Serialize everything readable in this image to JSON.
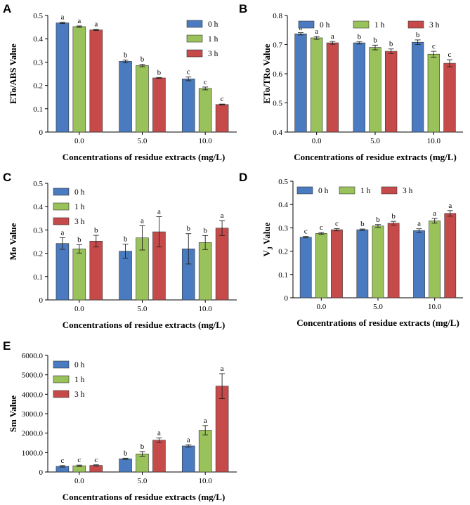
{
  "chart_data": [
    {
      "type": "bar",
      "panel_label": "A",
      "title": "",
      "xlabel": "Concentrations of residue extracts (mg/L)",
      "ylabel": "ETo/ABS Value",
      "categories": [
        "0.0",
        "5.0",
        "10.0"
      ],
      "ylim": [
        0,
        0.5
      ],
      "yticks": [
        "0",
        "0.1",
        "0.2",
        "0.3",
        "0.4",
        "0.5"
      ],
      "legend_position": "top-right",
      "series": [
        {
          "name": "0 h",
          "color": "#4a7bc0",
          "values": [
            0.468,
            0.303,
            0.228
          ],
          "errors": [
            0.003,
            0.006,
            0.008
          ],
          "labels": [
            "a",
            "b",
            "c"
          ]
        },
        {
          "name": "1 h",
          "color": "#9ac25a",
          "values": [
            0.452,
            0.285,
            0.187
          ],
          "errors": [
            0.003,
            0.005,
            0.006
          ],
          "labels": [
            "a",
            "b",
            "c"
          ]
        },
        {
          "name": "3 h",
          "color": "#c74a4a",
          "values": [
            0.438,
            0.232,
            0.118
          ],
          "errors": [
            0.003,
            0.002,
            0.002
          ],
          "labels": [
            "a",
            "b",
            "c"
          ]
        }
      ]
    },
    {
      "type": "bar",
      "panel_label": "B",
      "title": "",
      "xlabel": "Concentrations of residue extracts (mg/L)",
      "ylabel": "ETo/TRo Value",
      "categories": [
        "0.0",
        "5.0",
        "10.0"
      ],
      "ylim": [
        0.4,
        0.8
      ],
      "yticks": [
        "0.4",
        "0.5",
        "0.6",
        "0.7",
        "0.8"
      ],
      "legend_position": "top",
      "series": [
        {
          "name": "0 h",
          "color": "#4a7bc0",
          "values": [
            0.737,
            0.706,
            0.708
          ],
          "errors": [
            0.004,
            0.004,
            0.008
          ],
          "labels": [
            "a",
            "b",
            "b"
          ]
        },
        {
          "name": "1 h",
          "color": "#9ac25a",
          "values": [
            0.723,
            0.69,
            0.667
          ],
          "errors": [
            0.005,
            0.008,
            0.01
          ],
          "labels": [
            "a",
            "b",
            "c"
          ]
        },
        {
          "name": "3 h",
          "color": "#c74a4a",
          "values": [
            0.706,
            0.677,
            0.636
          ],
          "errors": [
            0.005,
            0.008,
            0.012
          ],
          "labels": [
            "a",
            "b",
            "c"
          ]
        }
      ]
    },
    {
      "type": "bar",
      "panel_label": "C",
      "title": "",
      "xlabel": "Concentrations of residue extracts (mg/L)",
      "ylabel": "Mo Value",
      "categories": [
        "0.0",
        "5.0",
        "10.0"
      ],
      "ylim": [
        0,
        0.5
      ],
      "yticks": [
        "0",
        "0.1",
        "0.2",
        "0.3",
        "0.4",
        "0.5"
      ],
      "legend_position": "top-left",
      "series": [
        {
          "name": "0 h",
          "color": "#4a7bc0",
          "values": [
            0.242,
            0.209,
            0.219
          ],
          "errors": [
            0.025,
            0.03,
            0.065
          ],
          "labels": [
            "a",
            "b",
            "b"
          ]
        },
        {
          "name": "1 h",
          "color": "#9ac25a",
          "values": [
            0.219,
            0.266,
            0.246
          ],
          "errors": [
            0.018,
            0.052,
            0.03
          ],
          "labels": [
            "b",
            "a",
            "b"
          ]
        },
        {
          "name": "3 h",
          "color": "#c74a4a",
          "values": [
            0.252,
            0.292,
            0.308
          ],
          "errors": [
            0.025,
            0.065,
            0.032
          ],
          "labels": [
            "b",
            "a",
            "a"
          ]
        }
      ]
    },
    {
      "type": "bar",
      "panel_label": "D",
      "title": "",
      "xlabel": "Concentrations of residue extracts (mg/L)",
      "ylabel": "VJ Value",
      "ylabel_main": "V",
      "ylabel_sub": "J",
      "ylabel_suffix": " Value",
      "categories": [
        "0.0",
        "5.0",
        "10.0"
      ],
      "ylim": [
        0,
        0.5
      ],
      "yticks": [
        "0",
        "0.1",
        "0.2",
        "0.3",
        "0.4",
        "0.5"
      ],
      "legend_position": "top",
      "series": [
        {
          "name": "0 h",
          "color": "#4a7bc0",
          "values": [
            0.26,
            0.292,
            0.288
          ],
          "errors": [
            0.003,
            0.003,
            0.008
          ],
          "labels": [
            "c",
            "b",
            "a"
          ]
        },
        {
          "name": "1 h",
          "color": "#9ac25a",
          "values": [
            0.276,
            0.308,
            0.33
          ],
          "errors": [
            0.004,
            0.006,
            0.01
          ],
          "labels": [
            "c",
            "b",
            "a"
          ]
        },
        {
          "name": "3 h",
          "color": "#c74a4a",
          "values": [
            0.292,
            0.32,
            0.362
          ],
          "errors": [
            0.005,
            0.008,
            0.012
          ],
          "labels": [
            "c",
            "b",
            "a"
          ]
        }
      ]
    },
    {
      "type": "bar",
      "panel_label": "E",
      "title": "",
      "xlabel": "Concentrations of residue extracts (mg/L)",
      "ylabel": "Sm Value",
      "categories": [
        "0.0",
        "5.0",
        "10.0"
      ],
      "ylim": [
        0,
        6000
      ],
      "yticks": [
        "0",
        "1000.0",
        "2000.0",
        "3000.0",
        "4000.0",
        "5000.0",
        "6000.0"
      ],
      "legend_position": "top-left",
      "series": [
        {
          "name": "0 h",
          "color": "#4a7bc0",
          "values": [
            290,
            680,
            1340
          ],
          "errors": [
            40,
            30,
            60
          ],
          "labels": [
            "c",
            "b",
            "a"
          ]
        },
        {
          "name": "1 h",
          "color": "#9ac25a",
          "values": [
            320,
            930,
            2150
          ],
          "errors": [
            35,
            120,
            240
          ],
          "labels": [
            "c",
            "b",
            "a"
          ]
        },
        {
          "name": "3 h",
          "color": "#c74a4a",
          "values": [
            340,
            1640,
            4420
          ],
          "errors": [
            30,
            110,
            640
          ],
          "labels": [
            "c",
            "a",
            "a"
          ]
        }
      ]
    }
  ]
}
